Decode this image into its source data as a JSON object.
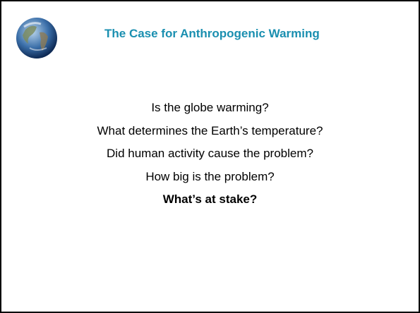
{
  "header": {
    "title": "The Case for Anthropogenic Warming"
  },
  "items": [
    "Is the globe warming?",
    "What determines the Earth’s temperature?",
    "Did human activity cause the problem?",
    "How big is the problem?",
    "What’s at stake?"
  ]
}
